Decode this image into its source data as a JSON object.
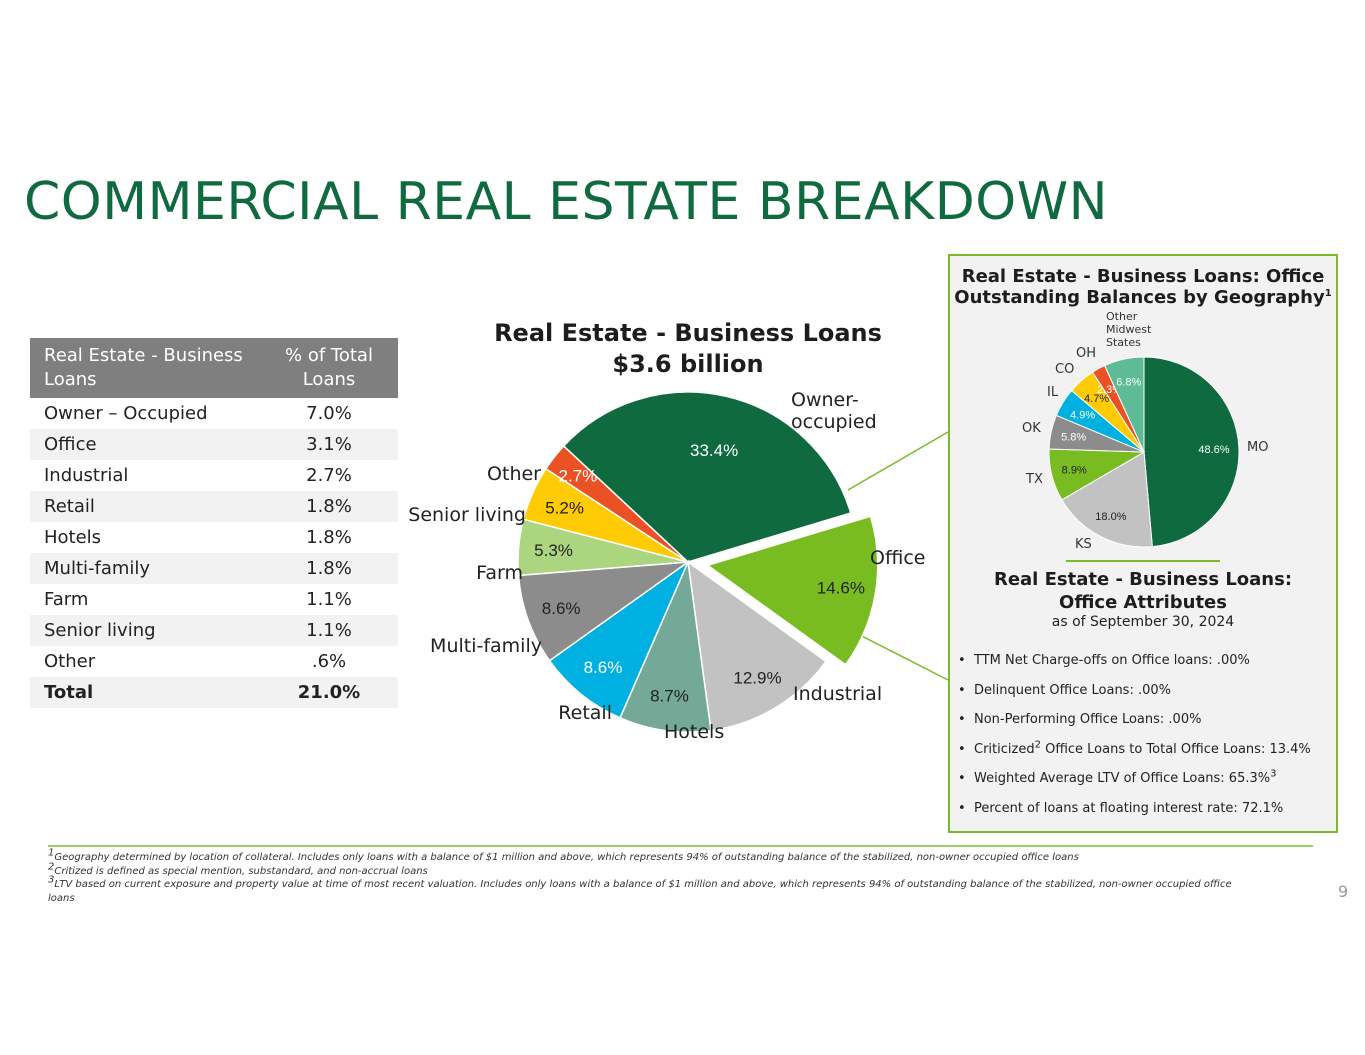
{
  "page": {
    "title": "COMMERCIAL REAL ESTATE BREAKDOWN",
    "page_number": "9"
  },
  "table": {
    "header_col1": "Real Estate - Business Loans",
    "header_col2": "% of Total Loans",
    "rows": [
      {
        "label": "Owner – Occupied",
        "value": "7.0%"
      },
      {
        "label": "Office",
        "value": "3.1%"
      },
      {
        "label": "Industrial",
        "value": "2.7%"
      },
      {
        "label": "Retail",
        "value": "1.8%"
      },
      {
        "label": "Hotels",
        "value": "1.8%"
      },
      {
        "label": "Multi-family",
        "value": "1.8%"
      },
      {
        "label": "Farm",
        "value": "1.1%"
      },
      {
        "label": "Senior living",
        "value": "1.1%"
      },
      {
        "label": "Other",
        "value": ".6%"
      }
    ],
    "total": {
      "label": "Total",
      "value": "21.0%"
    }
  },
  "chart_data": [
    {
      "type": "pie",
      "title_line1": "Real Estate - Business Loans",
      "title_line2": "$3.6 billion",
      "exploded_slice": "Office",
      "slices": [
        {
          "label": "Owner-occupied",
          "value": 33.4,
          "value_label": "33.4%",
          "color": "#0f6b3f"
        },
        {
          "label": "Office",
          "value": 14.6,
          "value_label": "14.6%",
          "color": "#79bc22"
        },
        {
          "label": "Industrial",
          "value": 12.9,
          "value_label": "12.9%",
          "color": "#c2c2c2"
        },
        {
          "label": "Hotels",
          "value": 8.7,
          "value_label": "8.7%",
          "color": "#73a996"
        },
        {
          "label": "Retail",
          "value": 8.6,
          "value_label": "8.6%",
          "color": "#00b0e0"
        },
        {
          "label": "Multi-family",
          "value": 8.6,
          "value_label": "8.6%",
          "color": "#8c8c8c"
        },
        {
          "label": "Farm",
          "value": 5.3,
          "value_label": "5.3%",
          "color": "#acd580"
        },
        {
          "label": "Senior living",
          "value": 5.2,
          "value_label": "5.2%",
          "color": "#ffcb05"
        },
        {
          "label": "Other",
          "value": 2.7,
          "value_label": "2.7%",
          "color": "#ea5125"
        }
      ]
    },
    {
      "type": "pie",
      "title_line1": "Real Estate - Business Loans: Office",
      "title_line2": "Outstanding Balances by Geography",
      "title_sup": "1",
      "slices": [
        {
          "label": "MO",
          "value": 48.6,
          "value_label": "48.6%",
          "color": "#0f6b3f"
        },
        {
          "label": "KS",
          "value": 18.0,
          "value_label": "18.0%",
          "color": "#c2c2c2"
        },
        {
          "label": "TX",
          "value": 8.9,
          "value_label": "8.9%",
          "color": "#79bc22"
        },
        {
          "label": "OK",
          "value": 5.8,
          "value_label": "5.8%",
          "color": "#8c8c8c"
        },
        {
          "label": "IL",
          "value": 4.9,
          "value_label": "4.9%",
          "color": "#00b0e0"
        },
        {
          "label": "CO",
          "value": 4.7,
          "value_label": "4.7%",
          "color": "#ffcb05"
        },
        {
          "label": "OH",
          "value": 2.3,
          "value_label": "2.3%",
          "color": "#ea5125"
        },
        {
          "label": "Other Midwest States",
          "value": 6.8,
          "value_label": "6.8%",
          "color": "#5dbb95"
        }
      ]
    }
  ],
  "attributes": {
    "title_line1": "Real Estate - Business Loans:",
    "title_line2": "Office Attributes",
    "subtitle": "as of September 30, 2024",
    "bullets": [
      {
        "text": "TTM Net Charge-offs on Office loans: .00%"
      },
      {
        "text": "Delinquent Office Loans: .00%"
      },
      {
        "text": "Non-Performing Office Loans: .00%"
      },
      {
        "pre": "Criticized",
        "sup": "2",
        "post": " Office Loans to Total Office Loans: 13.4%"
      },
      {
        "pre": "Weighted Average LTV of Office Loans: 65.3%",
        "sup": "3",
        "post": ""
      },
      {
        "text": "Percent of loans at floating interest rate: 72.1%"
      }
    ]
  },
  "footnotes": [
    {
      "sup": "1",
      "text": "Geography determined by location of collateral. Includes only loans with a balance of $1 million and above, which represents 94% of outstanding balance of the stabilized, non-owner occupied office loans"
    },
    {
      "sup": "2",
      "text": "Critized is defined as special mention, substandard, and non-accrual loans"
    },
    {
      "sup": "3",
      "text": "LTV based on current exposure and property value at time of most recent valuation.  Includes only loans with a balance of $1 million and above, which represents 94% of outstanding balance of the stabilized, non-owner occupied office loans"
    }
  ]
}
